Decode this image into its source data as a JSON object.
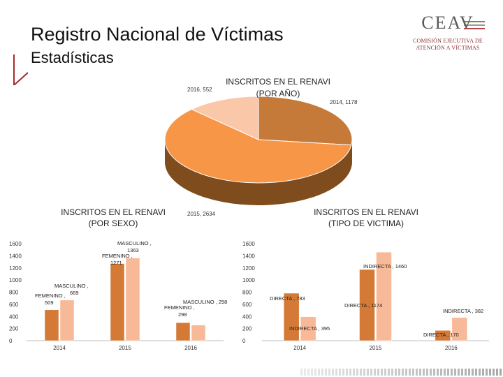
{
  "header": {
    "title": "Registro Nacional de Víctimas",
    "subtitle": "Estadísticas",
    "logo": {
      "name": "CEAV",
      "line1": "COMISIÓN EJECUTIVA DE",
      "line2": "ATENCIÓN A VÍCTIMAS"
    }
  },
  "colors": {
    "dark_orange": "#D47A36",
    "light_orange": "#F8B998",
    "pie_main": "#F79646",
    "pie_light": "#FAC8A8",
    "pie_dark": "#C57A3A",
    "pie_side": "#7F4C1D",
    "red_accent": "#A52A2A"
  },
  "chart_data": [
    {
      "type": "pie",
      "title": "INSCRITOS EN EL RENAVI\n(POR AÑO)",
      "title_lines": [
        "INSCRITOS EN EL RENAVI",
        "(POR AÑO)"
      ],
      "categories": [
        "2014",
        "2015",
        "2016"
      ],
      "values": [
        1178,
        2634,
        552
      ],
      "labels": [
        "2014, 1178",
        "2015, 2634",
        "2016, 552"
      ],
      "style": "3d"
    },
    {
      "type": "bar",
      "title": "INSCRITOS EN EL RENAVI\n(POR SEXO)",
      "title_lines": [
        "INSCRITOS EN EL RENAVI",
        "(POR SEXO)"
      ],
      "categories": [
        "2014",
        "2015",
        "2016"
      ],
      "series": [
        {
          "name": "FEMENINO",
          "values": [
            509,
            1271,
            298
          ]
        },
        {
          "name": "MASCULINO",
          "values": [
            669,
            1363,
            258
          ]
        }
      ],
      "data_labels": [
        [
          "FEMENINO , 509",
          "FEMENINO , 1271",
          "FEMENINO , 298"
        ],
        [
          "MASCULINO , 669",
          "MASCULINO , 1363",
          "MASCULINO , 258"
        ]
      ],
      "yticks": [
        0,
        200,
        400,
        600,
        800,
        1000,
        1200,
        1400,
        1600
      ],
      "ylim": [
        0,
        1600
      ]
    },
    {
      "type": "bar",
      "title": "INSCRITOS EN EL RENAVI\n(TIPO DE VICTIMA)",
      "title_lines": [
        "INSCRITOS EN EL RENAVI",
        "(TIPO DE VICTIMA)"
      ],
      "categories": [
        "2014",
        "2015",
        "2016"
      ],
      "series": [
        {
          "name": "DIRECTA",
          "values": [
            783,
            1174,
            170
          ]
        },
        {
          "name": "INDIRECTA",
          "values": [
            395,
            1460,
            382
          ]
        }
      ],
      "data_labels": [
        [
          "DIRECTA , 783",
          "DIRECTA , 1174",
          "DIRECTA , 170"
        ],
        [
          "INDIRECTA , 395",
          "INDIRECTA , 1460",
          "INDIRECTA , 382"
        ]
      ],
      "yticks": [
        0,
        200,
        400,
        600,
        800,
        1000,
        1200,
        1400,
        1600
      ],
      "ylim": [
        0,
        1600
      ]
    }
  ]
}
